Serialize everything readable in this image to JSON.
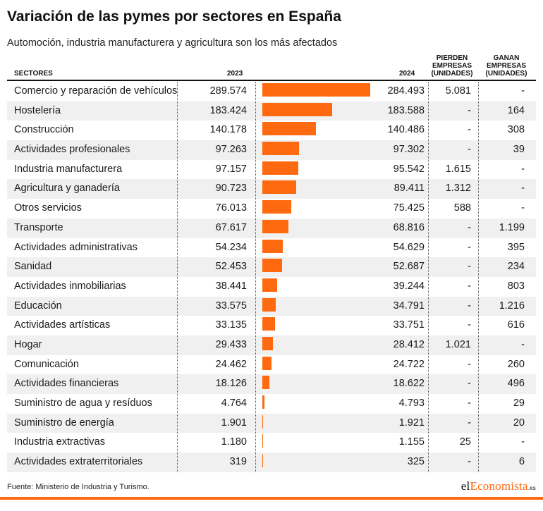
{
  "title": "Variación de las pymes por sectores en España",
  "subtitle": "Automoción, industria manufacturera y agricultura son los más afectados",
  "headers": {
    "sectores": "SECTORES",
    "y2023": "2023",
    "y2024": "2024",
    "lose_1": "PIERDEN",
    "lose_2": "EMPRESAS",
    "lose_3": "(UNIDADES)",
    "gain_1": "GANAN",
    "gain_2": "EMPRESAS",
    "gain_3": "(UNIDADES)"
  },
  "footer": {
    "source": "Fuente: Ministerio de Industria y Turismo.",
    "logo_a": "el",
    "logo_b": "Economista",
    "logo_c": ".es"
  },
  "colors": {
    "bar": "#ff6a10",
    "stripe": "#f0f0f0"
  },
  "chart_data": {
    "type": "table",
    "title": "Variación de las pymes por sectores en España",
    "subtitle": "Automoción, industria manufacturera y agricultura son los más afectados",
    "columns": [
      "SECTORES",
      "2023",
      "2024",
      "PIERDEN EMPRESAS (UNIDADES)",
      "GANAN EMPRESAS (UNIDADES)"
    ],
    "bar_column": "2024",
    "xlim": [
      0,
      284493
    ],
    "rows": [
      {
        "sector": "Comercio y reparación de vehículos",
        "y2023": "289.574",
        "y2024": "284.493",
        "value2024": 284493,
        "lose": "5.081",
        "gain": "-"
      },
      {
        "sector": "Hostelería",
        "y2023": "183.424",
        "y2024": "183.588",
        "value2024": 183588,
        "lose": "-",
        "gain": "164"
      },
      {
        "sector": "Construcción",
        "y2023": "140.178",
        "y2024": "140.486",
        "value2024": 140486,
        "lose": "-",
        "gain": "308"
      },
      {
        "sector": "Actividades profesionales",
        "y2023": "97.263",
        "y2024": "97.302",
        "value2024": 97302,
        "lose": "-",
        "gain": "39"
      },
      {
        "sector": "Industria manufacturera",
        "y2023": "97.157",
        "y2024": "95.542",
        "value2024": 95542,
        "lose": "1.615",
        "gain": "-"
      },
      {
        "sector": "Agricultura y ganadería",
        "y2023": "90.723",
        "y2024": "89.411",
        "value2024": 89411,
        "lose": "1.312",
        "gain": "-"
      },
      {
        "sector": "Otros servicios",
        "y2023": "76.013",
        "y2024": "75.425",
        "value2024": 75425,
        "lose": "588",
        "gain": "-"
      },
      {
        "sector": "Transporte",
        "y2023": "67.617",
        "y2024": "68.816",
        "value2024": 68816,
        "lose": "-",
        "gain": "1.199"
      },
      {
        "sector": "Actividades administrativas",
        "y2023": "54.234",
        "y2024": "54.629",
        "value2024": 54629,
        "lose": "-",
        "gain": "395"
      },
      {
        "sector": "Sanidad",
        "y2023": "52.453",
        "y2024": "52.687",
        "value2024": 52687,
        "lose": "-",
        "gain": "234"
      },
      {
        "sector": "Actividades inmobiliarias",
        "y2023": "38.441",
        "y2024": "39.244",
        "value2024": 39244,
        "lose": "-",
        "gain": "803"
      },
      {
        "sector": "Educación",
        "y2023": "33.575",
        "y2024": "34.791",
        "value2024": 34791,
        "lose": "-",
        "gain": "1.216"
      },
      {
        "sector": "Actividades artísticas",
        "y2023": "33.135",
        "y2024": "33.751",
        "value2024": 33751,
        "lose": "-",
        "gain": "616"
      },
      {
        "sector": "Hogar",
        "y2023": "29.433",
        "y2024": "28.412",
        "value2024": 28412,
        "lose": "1.021",
        "gain": "-"
      },
      {
        "sector": "Comunicación",
        "y2023": "24.462",
        "y2024": "24.722",
        "value2024": 24722,
        "lose": "-",
        "gain": "260"
      },
      {
        "sector": "Actividades financieras",
        "y2023": "18.126",
        "y2024": "18.622",
        "value2024": 18622,
        "lose": "-",
        "gain": "496"
      },
      {
        "sector": "Suministro de agua y resíduos",
        "y2023": "4.764",
        "y2024": "4.793",
        "value2024": 4793,
        "lose": "-",
        "gain": "29"
      },
      {
        "sector": "Suministro de energía",
        "y2023": "1.901",
        "y2024": "1.921",
        "value2024": 1921,
        "lose": "-",
        "gain": "20"
      },
      {
        "sector": "Industria extractivas",
        "y2023": "1.180",
        "y2024": "1.155",
        "value2024": 1155,
        "lose": "25",
        "gain": "-"
      },
      {
        "sector": "Actividades extraterritoriales",
        "y2023": "319",
        "y2024": "325",
        "value2024": 325,
        "lose": "-",
        "gain": "6"
      }
    ]
  }
}
